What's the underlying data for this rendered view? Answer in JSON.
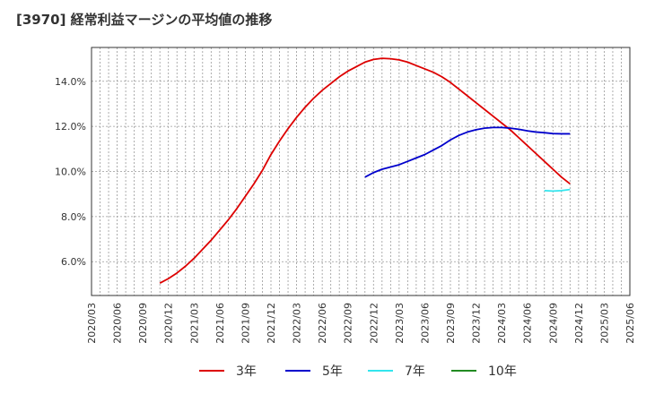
{
  "chart_data": {
    "type": "line",
    "title": "[3970]  経常利益マージンの平均値の推移",
    "xlabel": "",
    "ylabel": "",
    "x_ticks": [
      "2020/03",
      "2020/06",
      "2020/09",
      "2020/12",
      "2021/03",
      "2021/06",
      "2021/09",
      "2021/12",
      "2022/03",
      "2022/06",
      "2022/09",
      "2022/12",
      "2023/03",
      "2023/06",
      "2023/09",
      "2023/12",
      "2024/03",
      "2024/06",
      "2024/09",
      "2024/12",
      "2025/03",
      "2025/06"
    ],
    "y_ticks": [
      "6.0%",
      "8.0%",
      "10.0%",
      "12.0%",
      "14.0%"
    ],
    "y_tick_values": [
      6,
      8,
      10,
      12,
      14
    ],
    "ylim": [
      4.5,
      15.5
    ],
    "grid": true,
    "legend_position": "bottom",
    "series": [
      {
        "name": "3年",
        "color": "#dd0000",
        "points": [
          [
            "2020/11",
            5.05
          ],
          [
            "2020/12",
            5.25
          ],
          [
            "2021/01",
            5.5
          ],
          [
            "2021/02",
            5.8
          ],
          [
            "2021/03",
            6.15
          ],
          [
            "2021/04",
            6.55
          ],
          [
            "2021/05",
            6.95
          ],
          [
            "2021/06",
            7.4
          ],
          [
            "2021/07",
            7.85
          ],
          [
            "2021/08",
            8.35
          ],
          [
            "2021/09",
            8.9
          ],
          [
            "2021/10",
            9.45
          ],
          [
            "2021/11",
            10.05
          ],
          [
            "2021/12",
            10.75
          ],
          [
            "2022/01",
            11.35
          ],
          [
            "2022/02",
            11.9
          ],
          [
            "2022/03",
            12.4
          ],
          [
            "2022/04",
            12.85
          ],
          [
            "2022/05",
            13.25
          ],
          [
            "2022/06",
            13.6
          ],
          [
            "2022/07",
            13.9
          ],
          [
            "2022/08",
            14.2
          ],
          [
            "2022/09",
            14.45
          ],
          [
            "2022/10",
            14.65
          ],
          [
            "2022/11",
            14.85
          ],
          [
            "2022/12",
            14.97
          ],
          [
            "2023/01",
            15.02
          ],
          [
            "2023/02",
            15.0
          ],
          [
            "2023/03",
            14.95
          ],
          [
            "2023/04",
            14.85
          ],
          [
            "2023/05",
            14.7
          ],
          [
            "2023/06",
            14.55
          ],
          [
            "2023/07",
            14.4
          ],
          [
            "2023/08",
            14.2
          ],
          [
            "2023/09",
            13.95
          ],
          [
            "2023/10",
            13.65
          ],
          [
            "2023/11",
            13.35
          ],
          [
            "2023/12",
            13.05
          ],
          [
            "2024/01",
            12.75
          ],
          [
            "2024/02",
            12.45
          ],
          [
            "2024/03",
            12.15
          ],
          [
            "2024/04",
            11.85
          ],
          [
            "2024/05",
            11.5
          ],
          [
            "2024/06",
            11.15
          ],
          [
            "2024/07",
            10.8
          ],
          [
            "2024/08",
            10.45
          ],
          [
            "2024/09",
            10.1
          ],
          [
            "2024/10",
            9.75
          ],
          [
            "2024/11",
            9.45
          ]
        ]
      },
      {
        "name": "5年",
        "color": "#0000cc",
        "points": [
          [
            "2022/11",
            9.75
          ],
          [
            "2022/12",
            9.95
          ],
          [
            "2023/01",
            10.1
          ],
          [
            "2023/02",
            10.2
          ],
          [
            "2023/03",
            10.3
          ],
          [
            "2023/04",
            10.45
          ],
          [
            "2023/05",
            10.6
          ],
          [
            "2023/06",
            10.75
          ],
          [
            "2023/07",
            10.95
          ],
          [
            "2023/08",
            11.15
          ],
          [
            "2023/09",
            11.4
          ],
          [
            "2023/10",
            11.6
          ],
          [
            "2023/11",
            11.75
          ],
          [
            "2023/12",
            11.85
          ],
          [
            "2024/01",
            11.92
          ],
          [
            "2024/02",
            11.95
          ],
          [
            "2024/03",
            11.95
          ],
          [
            "2024/04",
            11.92
          ],
          [
            "2024/05",
            11.87
          ],
          [
            "2024/06",
            11.8
          ],
          [
            "2024/07",
            11.75
          ],
          [
            "2024/08",
            11.72
          ],
          [
            "2024/09",
            11.68
          ],
          [
            "2024/10",
            11.67
          ],
          [
            "2024/11",
            11.67
          ]
        ]
      },
      {
        "name": "7年",
        "color": "#33e5ee",
        "points": [
          [
            "2024/08",
            9.15
          ],
          [
            "2024/09",
            9.13
          ],
          [
            "2024/10",
            9.15
          ],
          [
            "2024/11",
            9.2
          ]
        ]
      },
      {
        "name": "10年",
        "color": "#228b22",
        "points": []
      }
    ]
  }
}
